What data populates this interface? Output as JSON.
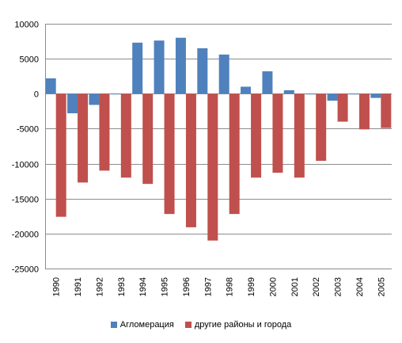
{
  "chart_data": {
    "type": "bar",
    "categories": [
      "1990",
      "1991",
      "1992",
      "1993",
      "1994",
      "1995",
      "1996",
      "1997",
      "1998",
      "1999",
      "2000",
      "2001",
      "2002",
      "2003",
      "2004",
      "2005"
    ],
    "series": [
      {
        "name": "Агломерация",
        "color": "#4F81BD",
        "values": [
          2200,
          -2800,
          -1600,
          -100,
          7300,
          7600,
          8000,
          6500,
          5600,
          1000,
          3200,
          500,
          -100,
          -1000,
          -100,
          -600
        ]
      },
      {
        "name": "другие районы и города",
        "color": "#C0504D",
        "values": [
          -17600,
          -12700,
          -11000,
          -12000,
          -12900,
          -17200,
          -19100,
          -21000,
          -17200,
          -12000,
          -11300,
          -12000,
          -9600,
          -4000,
          -5100,
          -4900
        ]
      }
    ],
    "yticks": [
      "10000",
      "5000",
      "0",
      "-5000",
      "-10000",
      "-15000",
      "-20000",
      "-25000"
    ],
    "ylim": [
      -25000,
      10000
    ],
    "grid": true,
    "legend_position": "bottom"
  }
}
